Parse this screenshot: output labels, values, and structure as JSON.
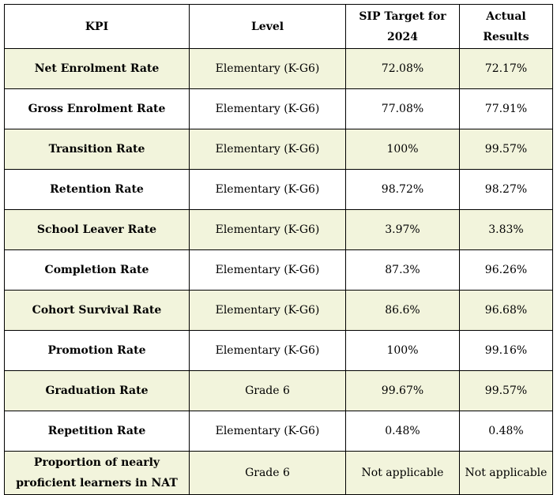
{
  "table": {
    "headers": {
      "kpi": "KPI",
      "level": "Level",
      "target": "SIP Target for 2024",
      "actual": "Actual Results"
    },
    "rows": [
      {
        "kpi": "Net Enrolment Rate",
        "level": "Elementary (K-G6)",
        "target": "72.08%",
        "actual": "72.17%"
      },
      {
        "kpi": "Gross Enrolment Rate",
        "level": "Elementary (K-G6)",
        "target": "77.08%",
        "actual": "77.91%"
      },
      {
        "kpi": "Transition Rate",
        "level": "Elementary (K-G6)",
        "target": "100%",
        "actual": "99.57%"
      },
      {
        "kpi": "Retention Rate",
        "level": "Elementary (K-G6)",
        "target": "98.72%",
        "actual": "98.27%"
      },
      {
        "kpi": "School Leaver Rate",
        "level": "Elementary (K-G6)",
        "target": "3.97%",
        "actual": "3.83%"
      },
      {
        "kpi": "Completion Rate",
        "level": "Elementary (K-G6)",
        "target": "87.3%",
        "actual": "96.26%"
      },
      {
        "kpi": "Cohort Survival Rate",
        "level": "Elementary (K-G6)",
        "target": "86.6%",
        "actual": "96.68%"
      },
      {
        "kpi": "Promotion Rate",
        "level": "Elementary (K-G6)",
        "target": "100%",
        "actual": "99.16%"
      },
      {
        "kpi": "Graduation Rate",
        "level": "Grade 6",
        "target": "99.67%",
        "actual": "99.57%"
      },
      {
        "kpi": "Repetition Rate",
        "level": "Elementary (K-G6)",
        "target": "0.48%",
        "actual": "0.48%"
      },
      {
        "kpi": "Proportion of nearly proficient learners in NAT",
        "level": "Grade 6",
        "target": "Not applicable",
        "actual": "Not applicable"
      }
    ]
  },
  "colors": {
    "shaded_row": "#f2f4dc",
    "plain_row": "#ffffff",
    "border": "#000000"
  }
}
